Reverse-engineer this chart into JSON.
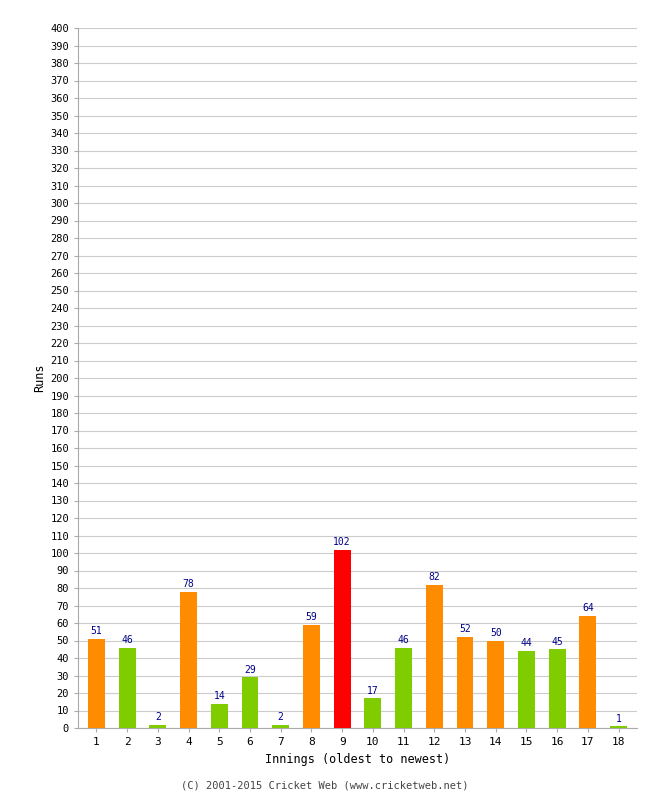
{
  "innings": [
    1,
    2,
    3,
    4,
    5,
    6,
    7,
    8,
    9,
    10,
    11,
    12,
    13,
    14,
    15,
    16,
    17,
    18
  ],
  "values": [
    51,
    46,
    2,
    78,
    14,
    29,
    2,
    59,
    102,
    17,
    46,
    82,
    52,
    50,
    44,
    45,
    64,
    1
  ],
  "colors": [
    "#FF8C00",
    "#7FCC00",
    "#7FCC00",
    "#FF8C00",
    "#7FCC00",
    "#7FCC00",
    "#7FCC00",
    "#FF8C00",
    "#FF0000",
    "#7FCC00",
    "#7FCC00",
    "#FF8C00",
    "#FF8C00",
    "#FF8C00",
    "#7FCC00",
    "#7FCC00",
    "#FF8C00",
    "#7FCC00"
  ],
  "ylabel": "Runs",
  "xlabel": "Innings (oldest to newest)",
  "ylim": [
    0,
    400
  ],
  "yticks": [
    0,
    10,
    20,
    30,
    40,
    50,
    60,
    70,
    80,
    90,
    100,
    110,
    120,
    130,
    140,
    150,
    160,
    170,
    180,
    190,
    200,
    210,
    220,
    230,
    240,
    250,
    260,
    270,
    280,
    290,
    300,
    310,
    320,
    330,
    340,
    350,
    360,
    370,
    380,
    390,
    400
  ],
  "label_color": "#00008B",
  "grid_color": "#CCCCCC",
  "bg_color": "#FFFFFF",
  "footer": "(C) 2001-2015 Cricket Web (www.cricketweb.net)",
  "bar_width": 0.55
}
